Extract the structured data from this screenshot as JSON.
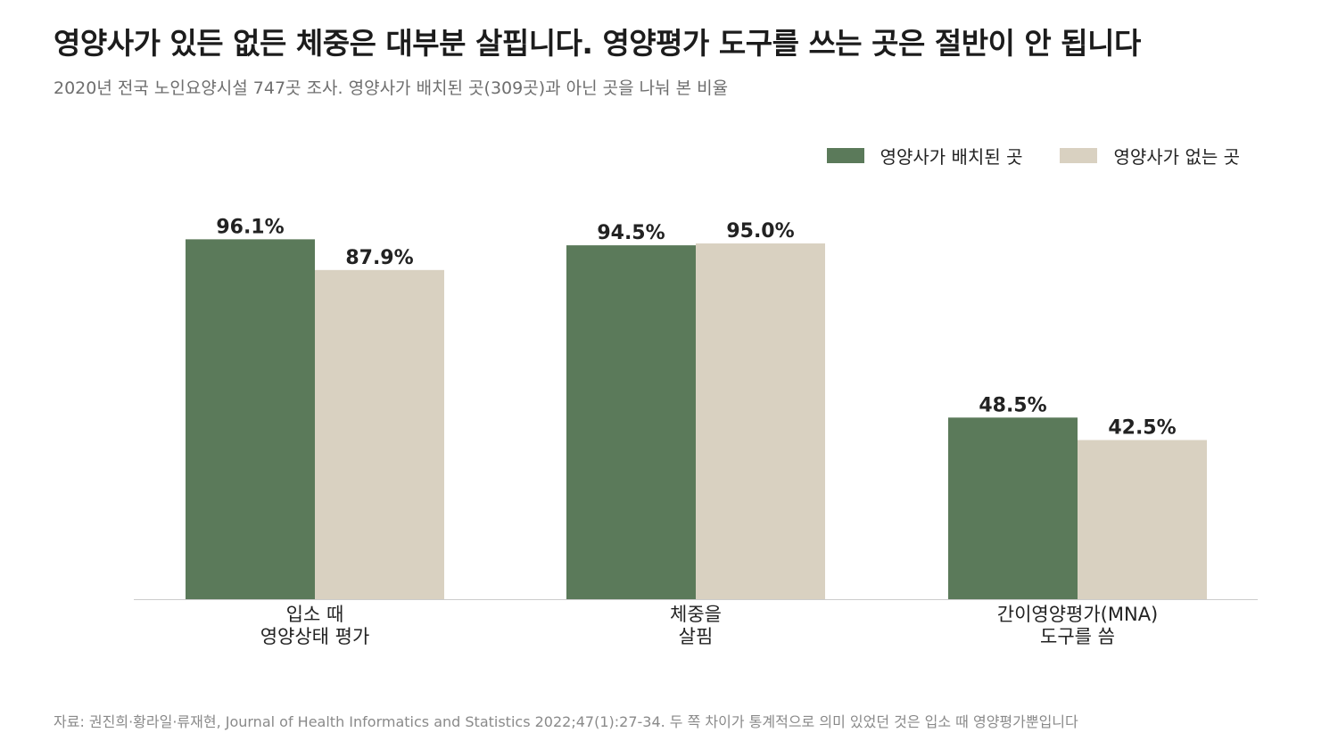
{
  "title": "영양사가 있든 없든 체중은 대부분 살핍니다. 영양평가 도구를 쓰는 곳은 절반이 안 됩니다",
  "subtitle": "2020년 전국 노인요양시설 747곳 조사. 영양사가 배치된 곳(309곳)과 아닌 곳을 나눠 본 비율",
  "footnote": "자료: 권진희·황라일·류재현, Journal of Health Informatics and Statistics 2022;47(1):27-34. 두 쪽 차이가 통계적으로 의미 있었던 것은 입소 때 영양평가뿐입니다",
  "colors": {
    "with": "#5b7a5a",
    "without": "#d9d1c1",
    "axis": "#cccccc"
  },
  "chart_data": {
    "type": "bar",
    "categories": [
      [
        "입소 때",
        "영양상태 평가"
      ],
      [
        "체중을",
        "살핌"
      ],
      [
        "간이영양평가(MNA)",
        "도구를 씀"
      ]
    ],
    "series": [
      {
        "name": "영양사가 배치된 곳",
        "values": [
          96.1,
          94.5,
          48.5
        ],
        "labels": [
          "96.1%",
          "94.5%",
          "48.5%"
        ]
      },
      {
        "name": "영양사가 없는 곳",
        "values": [
          87.9,
          95.0,
          42.5
        ],
        "labels": [
          "87.9%",
          "95.0%",
          "42.5%"
        ]
      }
    ],
    "ylim": [
      0,
      100
    ],
    "grid": false,
    "legend": "top-right",
    "xlabel": "",
    "ylabel": ""
  }
}
